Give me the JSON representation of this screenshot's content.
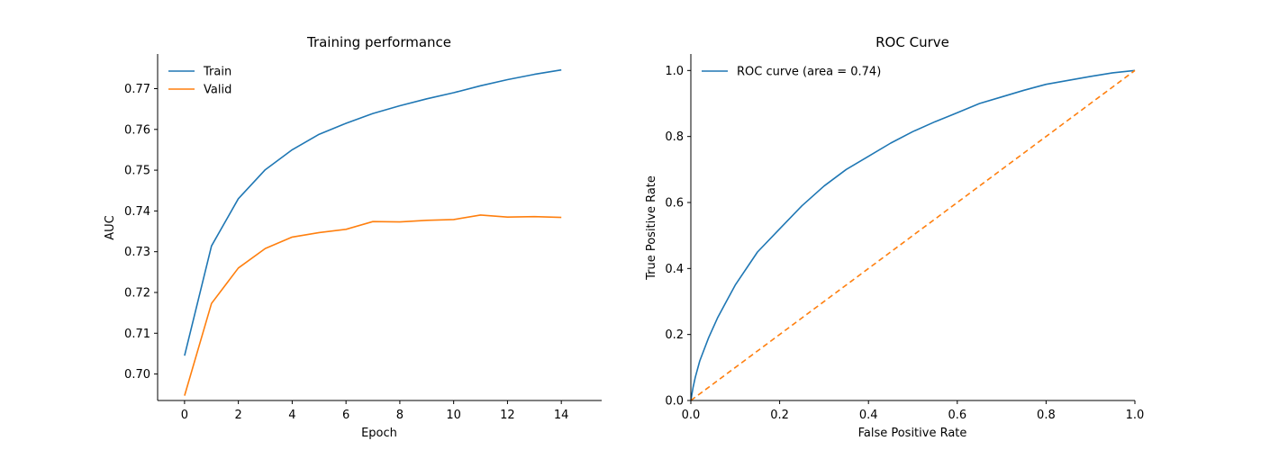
{
  "chart_data": [
    {
      "type": "line",
      "title": "Training performance",
      "xlabel": "Epoch",
      "ylabel": "AUC",
      "xlim": [
        -1,
        15.5
      ],
      "ylim": [
        0.6935,
        0.7785
      ],
      "xticks": [
        0,
        2,
        4,
        6,
        8,
        10,
        12,
        14
      ],
      "xtick_labels": [
        "0",
        "2",
        "4",
        "6",
        "8",
        "10",
        "12",
        "14"
      ],
      "yticks": [
        0.7,
        0.71,
        0.72,
        0.73,
        0.74,
        0.75,
        0.76,
        0.77
      ],
      "ytick_labels": [
        "0.70",
        "0.71",
        "0.72",
        "0.73",
        "0.74",
        "0.75",
        "0.76",
        "0.77"
      ],
      "grid": false,
      "legend_position": "top-left",
      "x": [
        0,
        1,
        2,
        3,
        4,
        5,
        6,
        7,
        8,
        9,
        10,
        11,
        12,
        13,
        14
      ],
      "series": [
        {
          "name": "Train",
          "color": "#1f77b4",
          "values": [
            0.7045,
            0.7314,
            0.743,
            0.7501,
            0.755,
            0.7588,
            0.7615,
            0.7639,
            0.7658,
            0.7675,
            0.769,
            0.7707,
            0.7722,
            0.7735,
            0.7746
          ]
        },
        {
          "name": "Valid",
          "color": "#ff7f0e",
          "values": [
            0.6947,
            0.7173,
            0.726,
            0.7308,
            0.7336,
            0.7347,
            0.7355,
            0.7374,
            0.7373,
            0.7377,
            0.7379,
            0.739,
            0.7385,
            0.7386,
            0.7384
          ]
        }
      ]
    },
    {
      "type": "line",
      "title": "ROC Curve",
      "xlabel": "False Positive Rate",
      "ylabel": "True Positive Rate",
      "xlim": [
        0.0,
        1.0
      ],
      "ylim": [
        0.0,
        1.05
      ],
      "xticks": [
        0.0,
        0.2,
        0.4,
        0.6,
        0.8,
        1.0
      ],
      "xtick_labels": [
        "0.0",
        "0.2",
        "0.4",
        "0.6",
        "0.8",
        "1.0"
      ],
      "yticks": [
        0.0,
        0.2,
        0.4,
        0.6,
        0.8,
        1.0
      ],
      "ytick_labels": [
        "0.0",
        "0.2",
        "0.4",
        "0.6",
        "0.8",
        "1.0"
      ],
      "grid": false,
      "legend_position": "top-left",
      "series": [
        {
          "name": "ROC curve (area = 0.74)",
          "color": "#1f77b4",
          "x": [
            0.0,
            0.005,
            0.01,
            0.02,
            0.04,
            0.06,
            0.08,
            0.1,
            0.15,
            0.2,
            0.25,
            0.3,
            0.35,
            0.4,
            0.45,
            0.5,
            0.55,
            0.6,
            0.65,
            0.7,
            0.75,
            0.8,
            0.85,
            0.9,
            0.95,
            1.0
          ],
          "y": [
            0.0,
            0.04,
            0.07,
            0.12,
            0.19,
            0.25,
            0.3,
            0.35,
            0.45,
            0.52,
            0.59,
            0.65,
            0.7,
            0.74,
            0.78,
            0.815,
            0.845,
            0.872,
            0.9,
            0.92,
            0.94,
            0.958,
            0.97,
            0.982,
            0.993,
            1.0
          ]
        },
        {
          "color": "#ff7f0e",
          "dashed": true,
          "x": [
            0.0,
            1.0
          ],
          "y": [
            0.0,
            1.0
          ]
        }
      ]
    }
  ]
}
